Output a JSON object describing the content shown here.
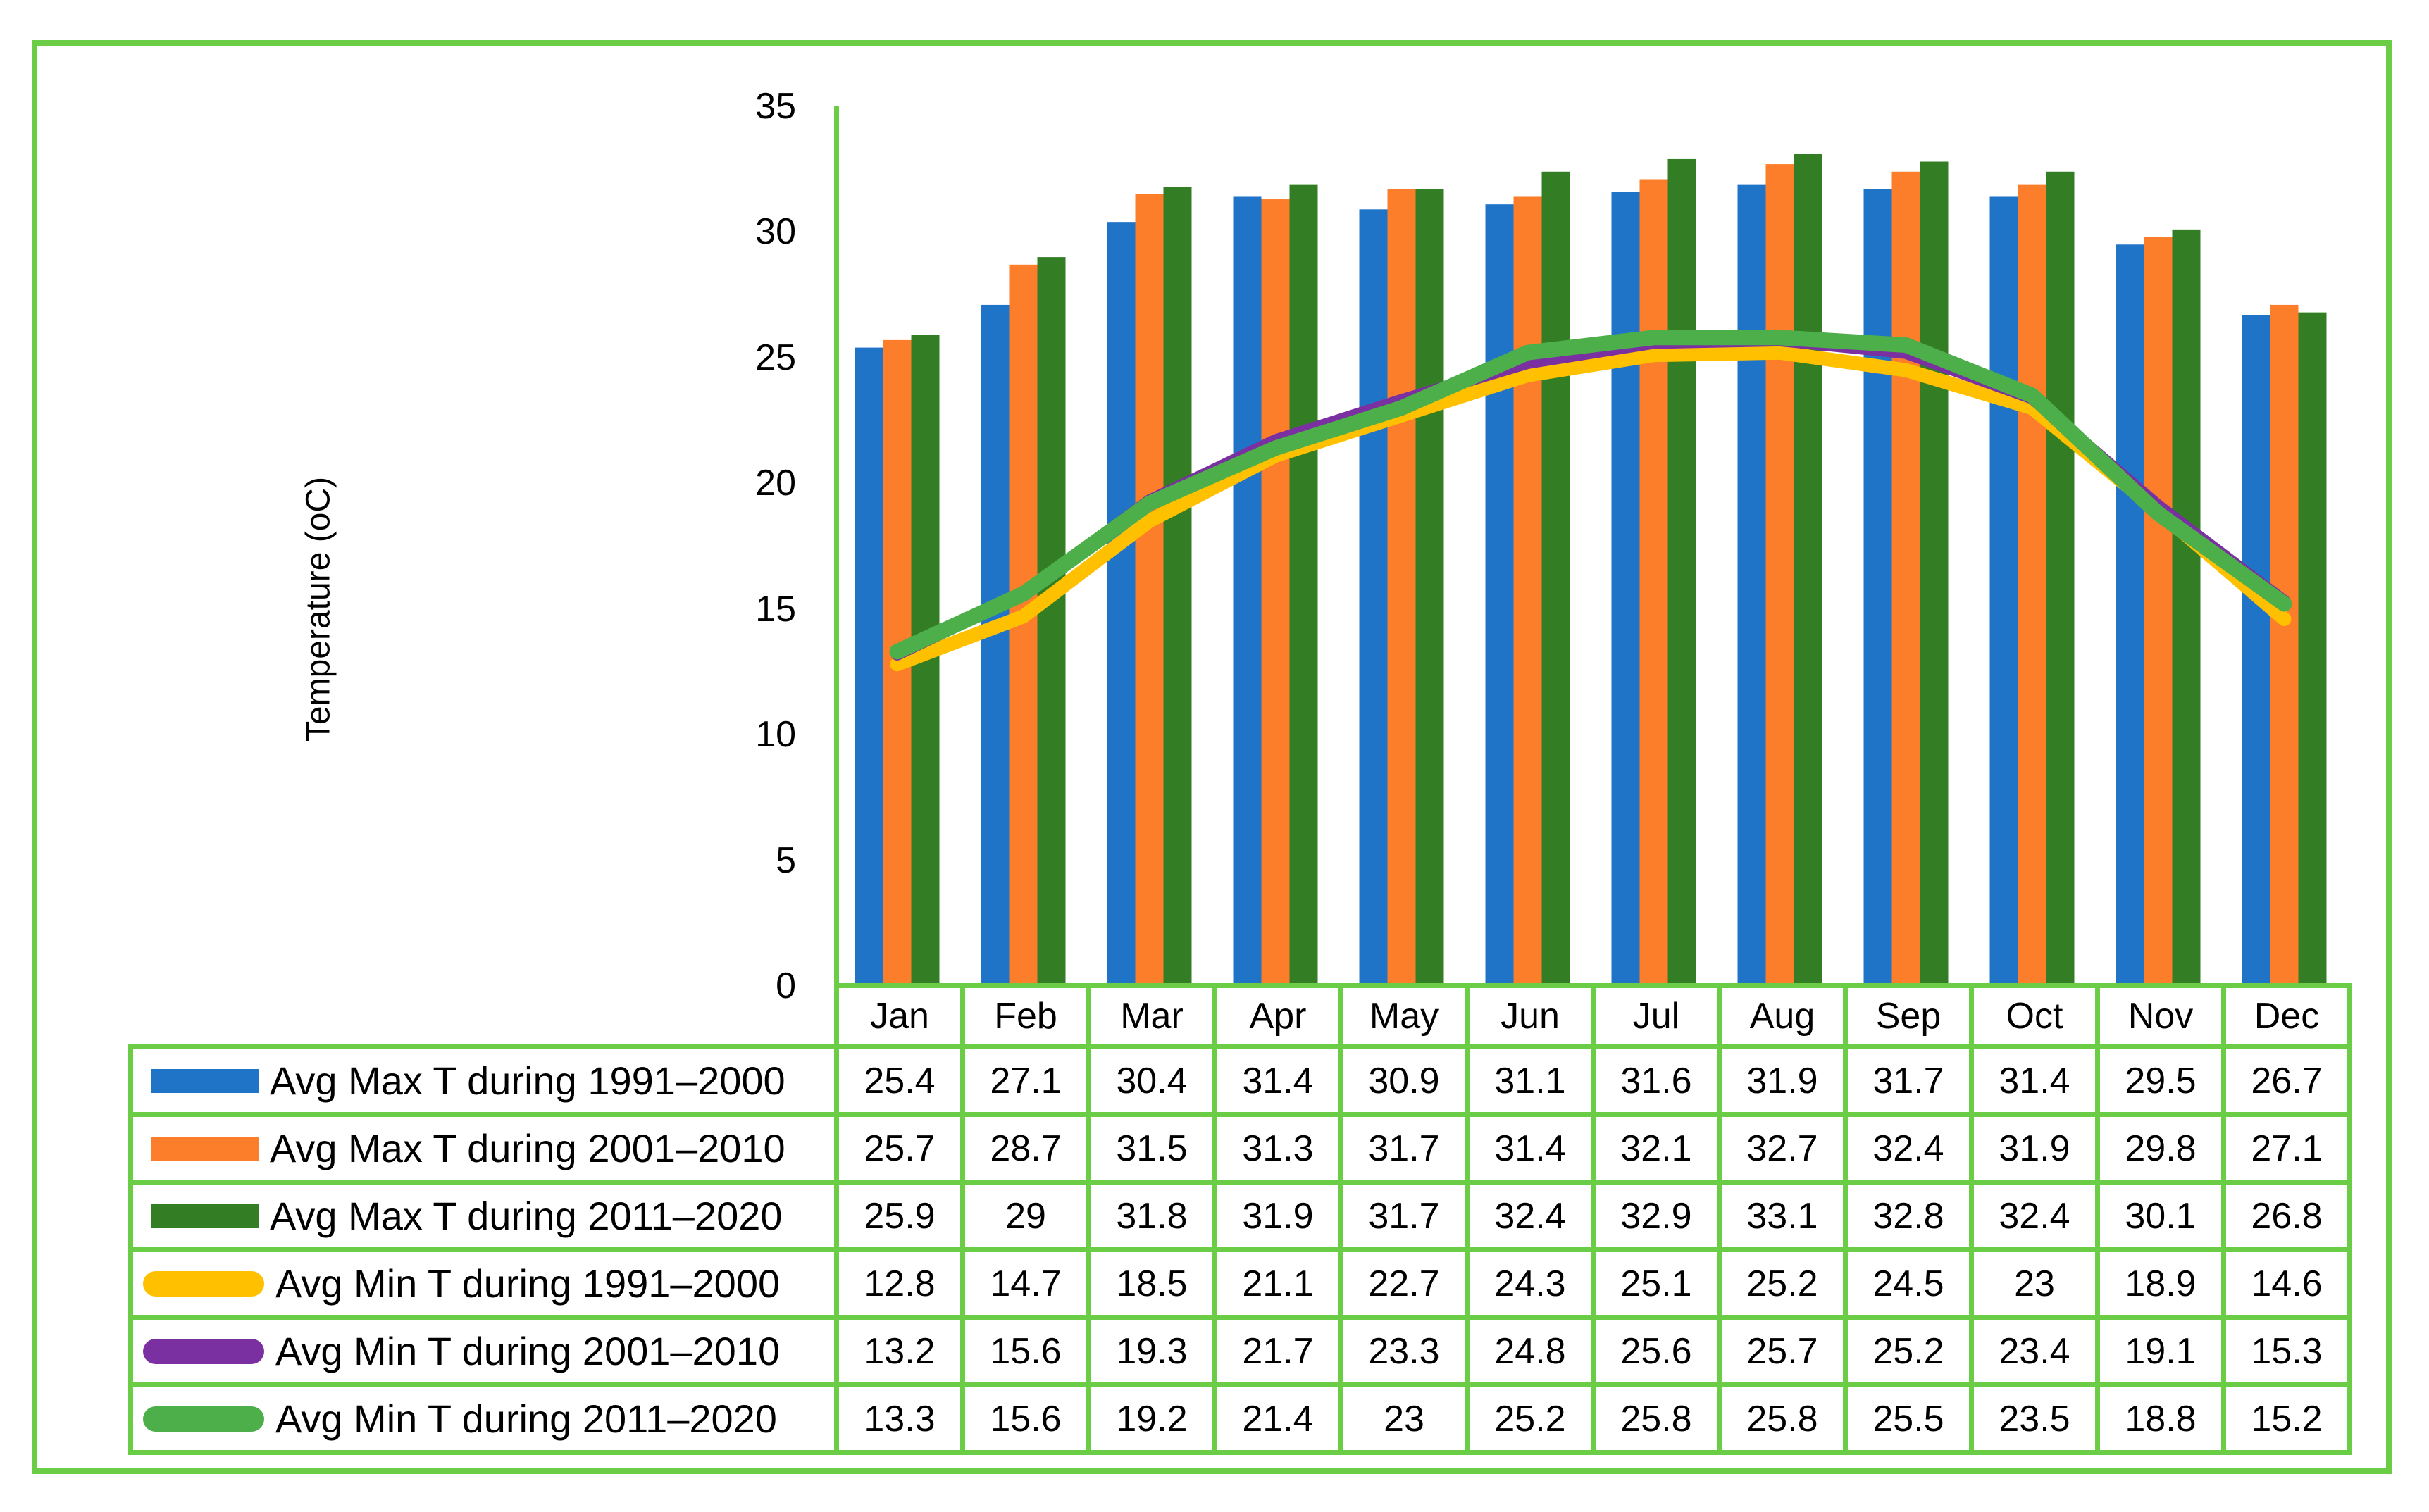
{
  "figure": {
    "background": "#FFFFFF",
    "frame_color": "#6BCD45"
  },
  "chart_data": {
    "type": "bar",
    "title": "",
    "xlabel": "",
    "ylabel": "Temperature (oC)",
    "ylim": [
      0,
      35
    ],
    "yticks": [
      0,
      5,
      10,
      15,
      20,
      25,
      30,
      35
    ],
    "grid": false,
    "legend_position": "data-table-left-column",
    "categories": [
      "Jan",
      "Feb",
      "Mar",
      "Apr",
      "May",
      "Jun",
      "Jul",
      "Aug",
      "Sep",
      "Oct",
      "Nov",
      "Dec"
    ],
    "series": [
      {
        "name": "Avg Max T during 1991–2000",
        "kind": "bar",
        "color": "#2074C8",
        "values": [
          25.4,
          27.1,
          30.4,
          31.4,
          30.9,
          31.1,
          31.6,
          31.9,
          31.7,
          31.4,
          29.5,
          26.7
        ]
      },
      {
        "name": "Avg Max T during 2001–2010",
        "kind": "bar",
        "color": "#FD7E2A",
        "values": [
          25.7,
          28.7,
          31.5,
          31.3,
          31.7,
          31.4,
          32.1,
          32.7,
          32.4,
          31.9,
          29.8,
          27.1
        ]
      },
      {
        "name": "Avg Max T during 2011–2020",
        "kind": "bar",
        "color": "#337D25",
        "values": [
          25.9,
          29,
          31.8,
          31.9,
          31.7,
          32.4,
          32.9,
          33.1,
          32.8,
          32.4,
          30.1,
          26.8
        ]
      },
      {
        "name": "Avg Min T during 1991–2000",
        "kind": "line",
        "color": "#FFC000",
        "values": [
          12.8,
          14.7,
          18.5,
          21.1,
          22.7,
          24.3,
          25.1,
          25.2,
          24.5,
          23,
          18.9,
          14.6
        ]
      },
      {
        "name": "Avg Min T during 2001–2010",
        "kind": "line",
        "color": "#7A30A0",
        "values": [
          13.2,
          15.6,
          19.3,
          21.7,
          23.3,
          24.8,
          25.6,
          25.7,
          25.2,
          23.4,
          19.1,
          15.3
        ]
      },
      {
        "name": "Avg Min T during 2011–2020",
        "kind": "line",
        "color": "#4CAF4A",
        "values": [
          13.3,
          15.6,
          19.2,
          21.4,
          23,
          25.2,
          25.8,
          25.8,
          25.5,
          23.5,
          18.8,
          15.2
        ]
      }
    ]
  }
}
